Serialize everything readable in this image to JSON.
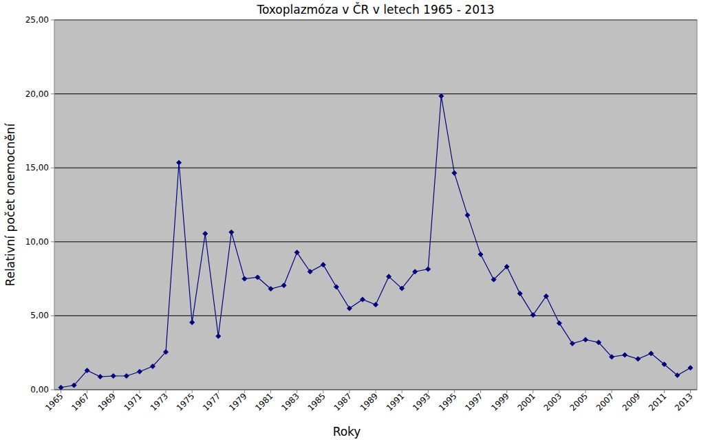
{
  "chart_data": {
    "type": "line",
    "title": "Toxoplazmóza v ČR v letech 1965 - 2013",
    "x_label": "Roky",
    "y_label": "Relativní počet onemocnění",
    "x": [
      1965,
      1966,
      1967,
      1968,
      1969,
      1970,
      1971,
      1972,
      1973,
      1974,
      1975,
      1976,
      1977,
      1978,
      1979,
      1980,
      1981,
      1982,
      1983,
      1984,
      1985,
      1986,
      1987,
      1988,
      1989,
      1990,
      1991,
      1992,
      1993,
      1994,
      1995,
      1996,
      1997,
      1998,
      1999,
      2000,
      2001,
      2002,
      2003,
      2004,
      2005,
      2006,
      2007,
      2008,
      2009,
      2010,
      2011,
      2012,
      2013
    ],
    "values": [
      0.15,
      0.3,
      1.3,
      0.88,
      0.93,
      0.93,
      1.22,
      1.58,
      2.55,
      15.35,
      4.55,
      10.55,
      3.62,
      10.65,
      7.5,
      7.6,
      6.82,
      7.05,
      9.28,
      7.98,
      8.45,
      6.95,
      5.5,
      6.1,
      5.75,
      7.65,
      6.85,
      7.98,
      8.15,
      19.85,
      14.65,
      11.8,
      9.15,
      7.45,
      8.32,
      6.5,
      5.05,
      6.32,
      4.5,
      3.12,
      3.38,
      3.2,
      2.22,
      2.35,
      2.08,
      2.45,
      1.72,
      0.98,
      1.48
    ],
    "color": "#000080",
    "marker": "diamond",
    "xlim": [
      1964.5,
      2013.5
    ],
    "xticks": [
      1965,
      1967,
      1969,
      1971,
      1973,
      1975,
      1977,
      1979,
      1981,
      1983,
      1985,
      1987,
      1989,
      1991,
      1993,
      1995,
      1997,
      1999,
      2001,
      2003,
      2005,
      2007,
      2009,
      2011,
      2013
    ],
    "ylim": [
      0,
      25
    ],
    "yticks": [
      {
        "value": 0,
        "label": "0,00"
      },
      {
        "value": 5,
        "label": "5,00"
      },
      {
        "value": 10,
        "label": "10,00"
      },
      {
        "value": 15,
        "label": "15,00"
      },
      {
        "value": 20,
        "label": "20,00"
      },
      {
        "value": 25,
        "label": "25,00"
      }
    ],
    "grid": true
  }
}
